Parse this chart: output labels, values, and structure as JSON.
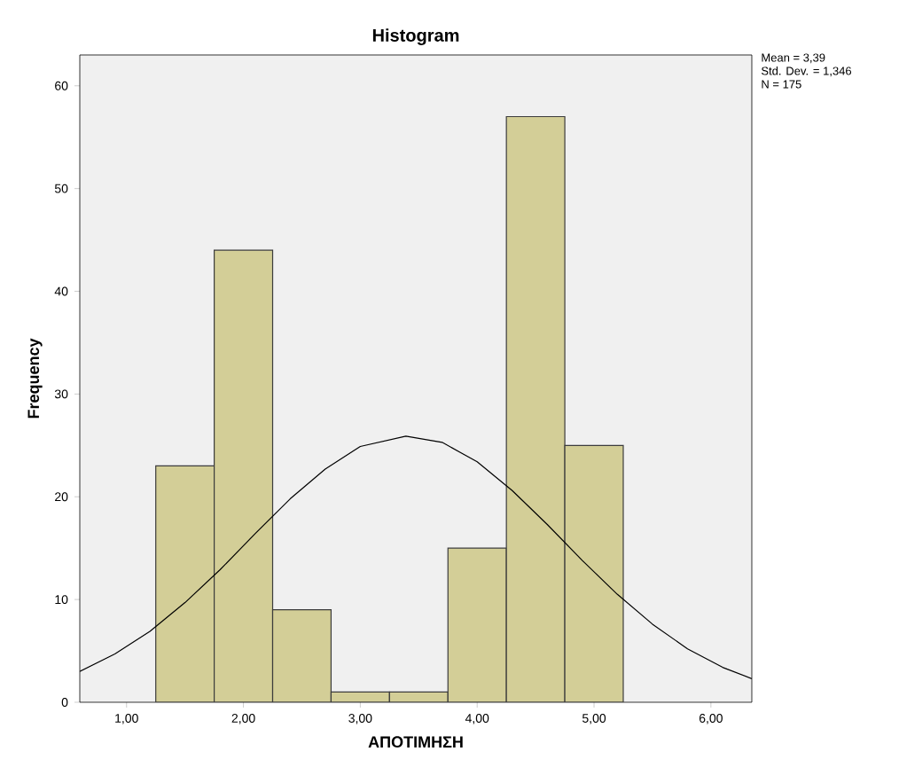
{
  "chart_data": {
    "type": "histogram",
    "title": "Histogram",
    "xlabel": "ΑΠΟΤΙΜΗΣΗ",
    "ylabel": "Frequency",
    "bins": [
      1.25,
      1.75,
      2.25,
      2.75,
      3.25,
      3.75,
      4.25,
      4.75,
      5.25
    ],
    "values": [
      23,
      44,
      9,
      1,
      1,
      15,
      57,
      25
    ],
    "color": "#d3ce97",
    "series": [
      {
        "type": "line",
        "color": "#000000",
        "x": [
          0.6,
          0.9,
          1.2,
          1.5,
          1.8,
          2.1,
          2.4,
          2.7,
          3.0,
          3.39,
          3.7,
          4.0,
          4.3,
          4.6,
          4.9,
          5.2,
          5.5,
          5.8,
          6.1,
          6.35
        ],
        "values": [
          3.0,
          4.7,
          6.9,
          9.7,
          12.9,
          16.4,
          19.8,
          22.7,
          24.9,
          25.9,
          25.3,
          23.4,
          20.6,
          17.3,
          13.8,
          10.5,
          7.6,
          5.2,
          3.4,
          2.3
        ]
      }
    ],
    "xlim": [
      0.6,
      6.35
    ],
    "ylim": [
      0,
      63
    ],
    "xticks": [
      {
        "value": 1,
        "label": "1,00"
      },
      {
        "value": 2,
        "label": "2,00"
      },
      {
        "value": 3,
        "label": "3,00"
      },
      {
        "value": 4,
        "label": "4,00"
      },
      {
        "value": 5,
        "label": "5,00"
      },
      {
        "value": 6,
        "label": "6,00"
      }
    ],
    "yticks": [
      0,
      10,
      20,
      30,
      40,
      50,
      60
    ],
    "annotations": [
      "Mean = 3,39",
      "Std. Dev. = 1,346",
      "N = 175"
    ]
  }
}
